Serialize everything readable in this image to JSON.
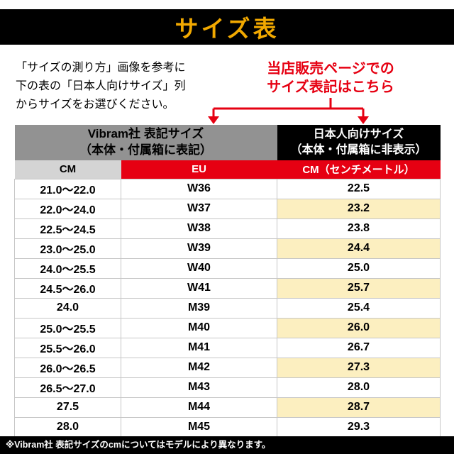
{
  "banner": {
    "title": "サイズ表"
  },
  "intro": {
    "lines": [
      "「サイズの測り方」画像を参考に",
      "下の表の「日本人向けサイズ」列",
      "からサイズをお選びください。"
    ]
  },
  "callout": {
    "lines": [
      "当店販売ページでの",
      "サイズ表記はこちら"
    ]
  },
  "table": {
    "vibram_header": {
      "line1": "Vibram社 表記サイズ",
      "line2": "（本体・付属箱に表記）"
    },
    "jp_header": {
      "line1": "日本人向けサイズ",
      "line2": "（本体・付属箱に非表示）"
    },
    "col_headers": [
      "CM",
      "EU",
      "CM（センチメートル）"
    ],
    "rows": [
      {
        "cm": "21.0〜22.0",
        "eu": "W36",
        "jp": "22.5",
        "highlight": false
      },
      {
        "cm": "22.0〜24.0",
        "eu": "W37",
        "jp": "23.2",
        "highlight": true
      },
      {
        "cm": "22.5〜24.5",
        "eu": "W38",
        "jp": "23.8",
        "highlight": false
      },
      {
        "cm": "23.0〜25.0",
        "eu": "W39",
        "jp": "24.4",
        "highlight": true
      },
      {
        "cm": "24.0〜25.5",
        "eu": "W40",
        "jp": "25.0",
        "highlight": false
      },
      {
        "cm": "24.5〜26.0",
        "eu": "W41",
        "jp": "25.7",
        "highlight": true
      },
      {
        "cm": "24.0",
        "eu": "M39",
        "jp": "25.4",
        "highlight": false
      },
      {
        "cm": "25.0〜25.5",
        "eu": "M40",
        "jp": "26.0",
        "highlight": true
      },
      {
        "cm": "25.5〜26.0",
        "eu": "M41",
        "jp": "26.7",
        "highlight": false
      },
      {
        "cm": "26.0〜26.5",
        "eu": "M42",
        "jp": "27.3",
        "highlight": true
      },
      {
        "cm": "26.5〜27.0",
        "eu": "M43",
        "jp": "28.0",
        "highlight": false
      },
      {
        "cm": "27.5",
        "eu": "M44",
        "jp": "28.7",
        "highlight": true
      },
      {
        "cm": "28.0",
        "eu": "M45",
        "jp": "29.3",
        "highlight": false
      }
    ]
  },
  "footer": {
    "note": "※Vibram社 表記サイズのcmについてはモデルにより異なります。"
  },
  "colors": {
    "yellow": "#f2a900",
    "red": "#e60012",
    "highlight": "#fcefc0",
    "header_gray": "#929292",
    "subheader_gray": "#d4d4d4",
    "black": "#000000"
  }
}
